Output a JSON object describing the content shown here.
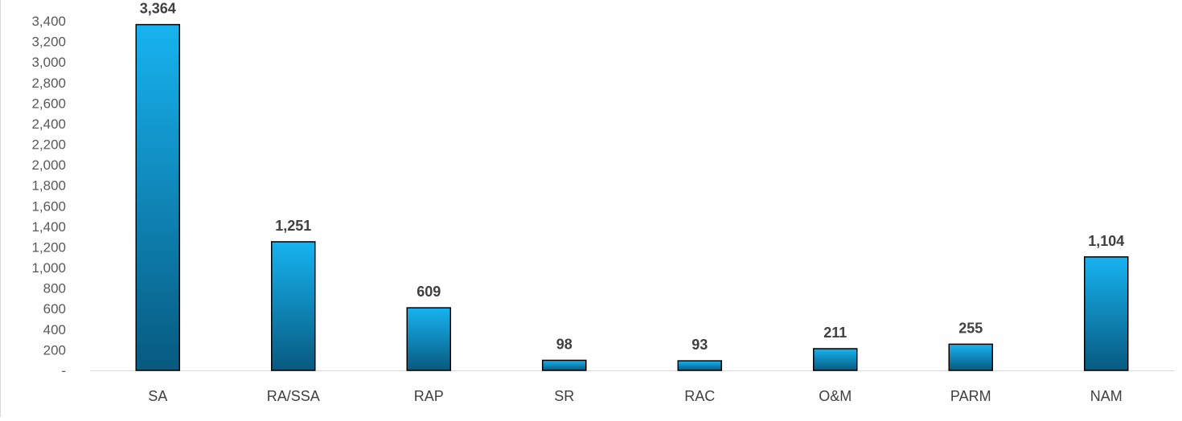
{
  "chart_data": {
    "type": "bar",
    "title": "",
    "xlabel": "",
    "ylabel": "",
    "categories": [
      "SA",
      "RA/SSA",
      "RAP",
      "SR",
      "RAC",
      "O&M",
      "PARM",
      "NAM"
    ],
    "values": [
      3364,
      1251,
      609,
      98,
      93,
      211,
      255,
      1104
    ],
    "value_labels": [
      "3,364",
      "1,251",
      "609",
      "98",
      "93",
      "211",
      "255",
      "1,104"
    ],
    "ylim": [
      0,
      3400
    ],
    "yticks": [
      0,
      200,
      400,
      600,
      800,
      1000,
      1200,
      1400,
      1600,
      1800,
      2000,
      2200,
      2400,
      2600,
      2800,
      3000,
      3200,
      3400
    ],
    "ytick_labels": [
      "-",
      "200",
      "400",
      "600",
      "800",
      "1,000",
      "1,200",
      "1,400",
      "1,600",
      "1,800",
      "2,000",
      "2,200",
      "2,400",
      "2,600",
      "2,800",
      "3,000",
      "3,200",
      "3,400"
    ],
    "grid": false,
    "legend": "none",
    "colors": {
      "bar_top": "#17b3f0",
      "bar_bottom": "#075a80",
      "bar_outline": "#000000",
      "axis": "#d9d9d9"
    }
  }
}
